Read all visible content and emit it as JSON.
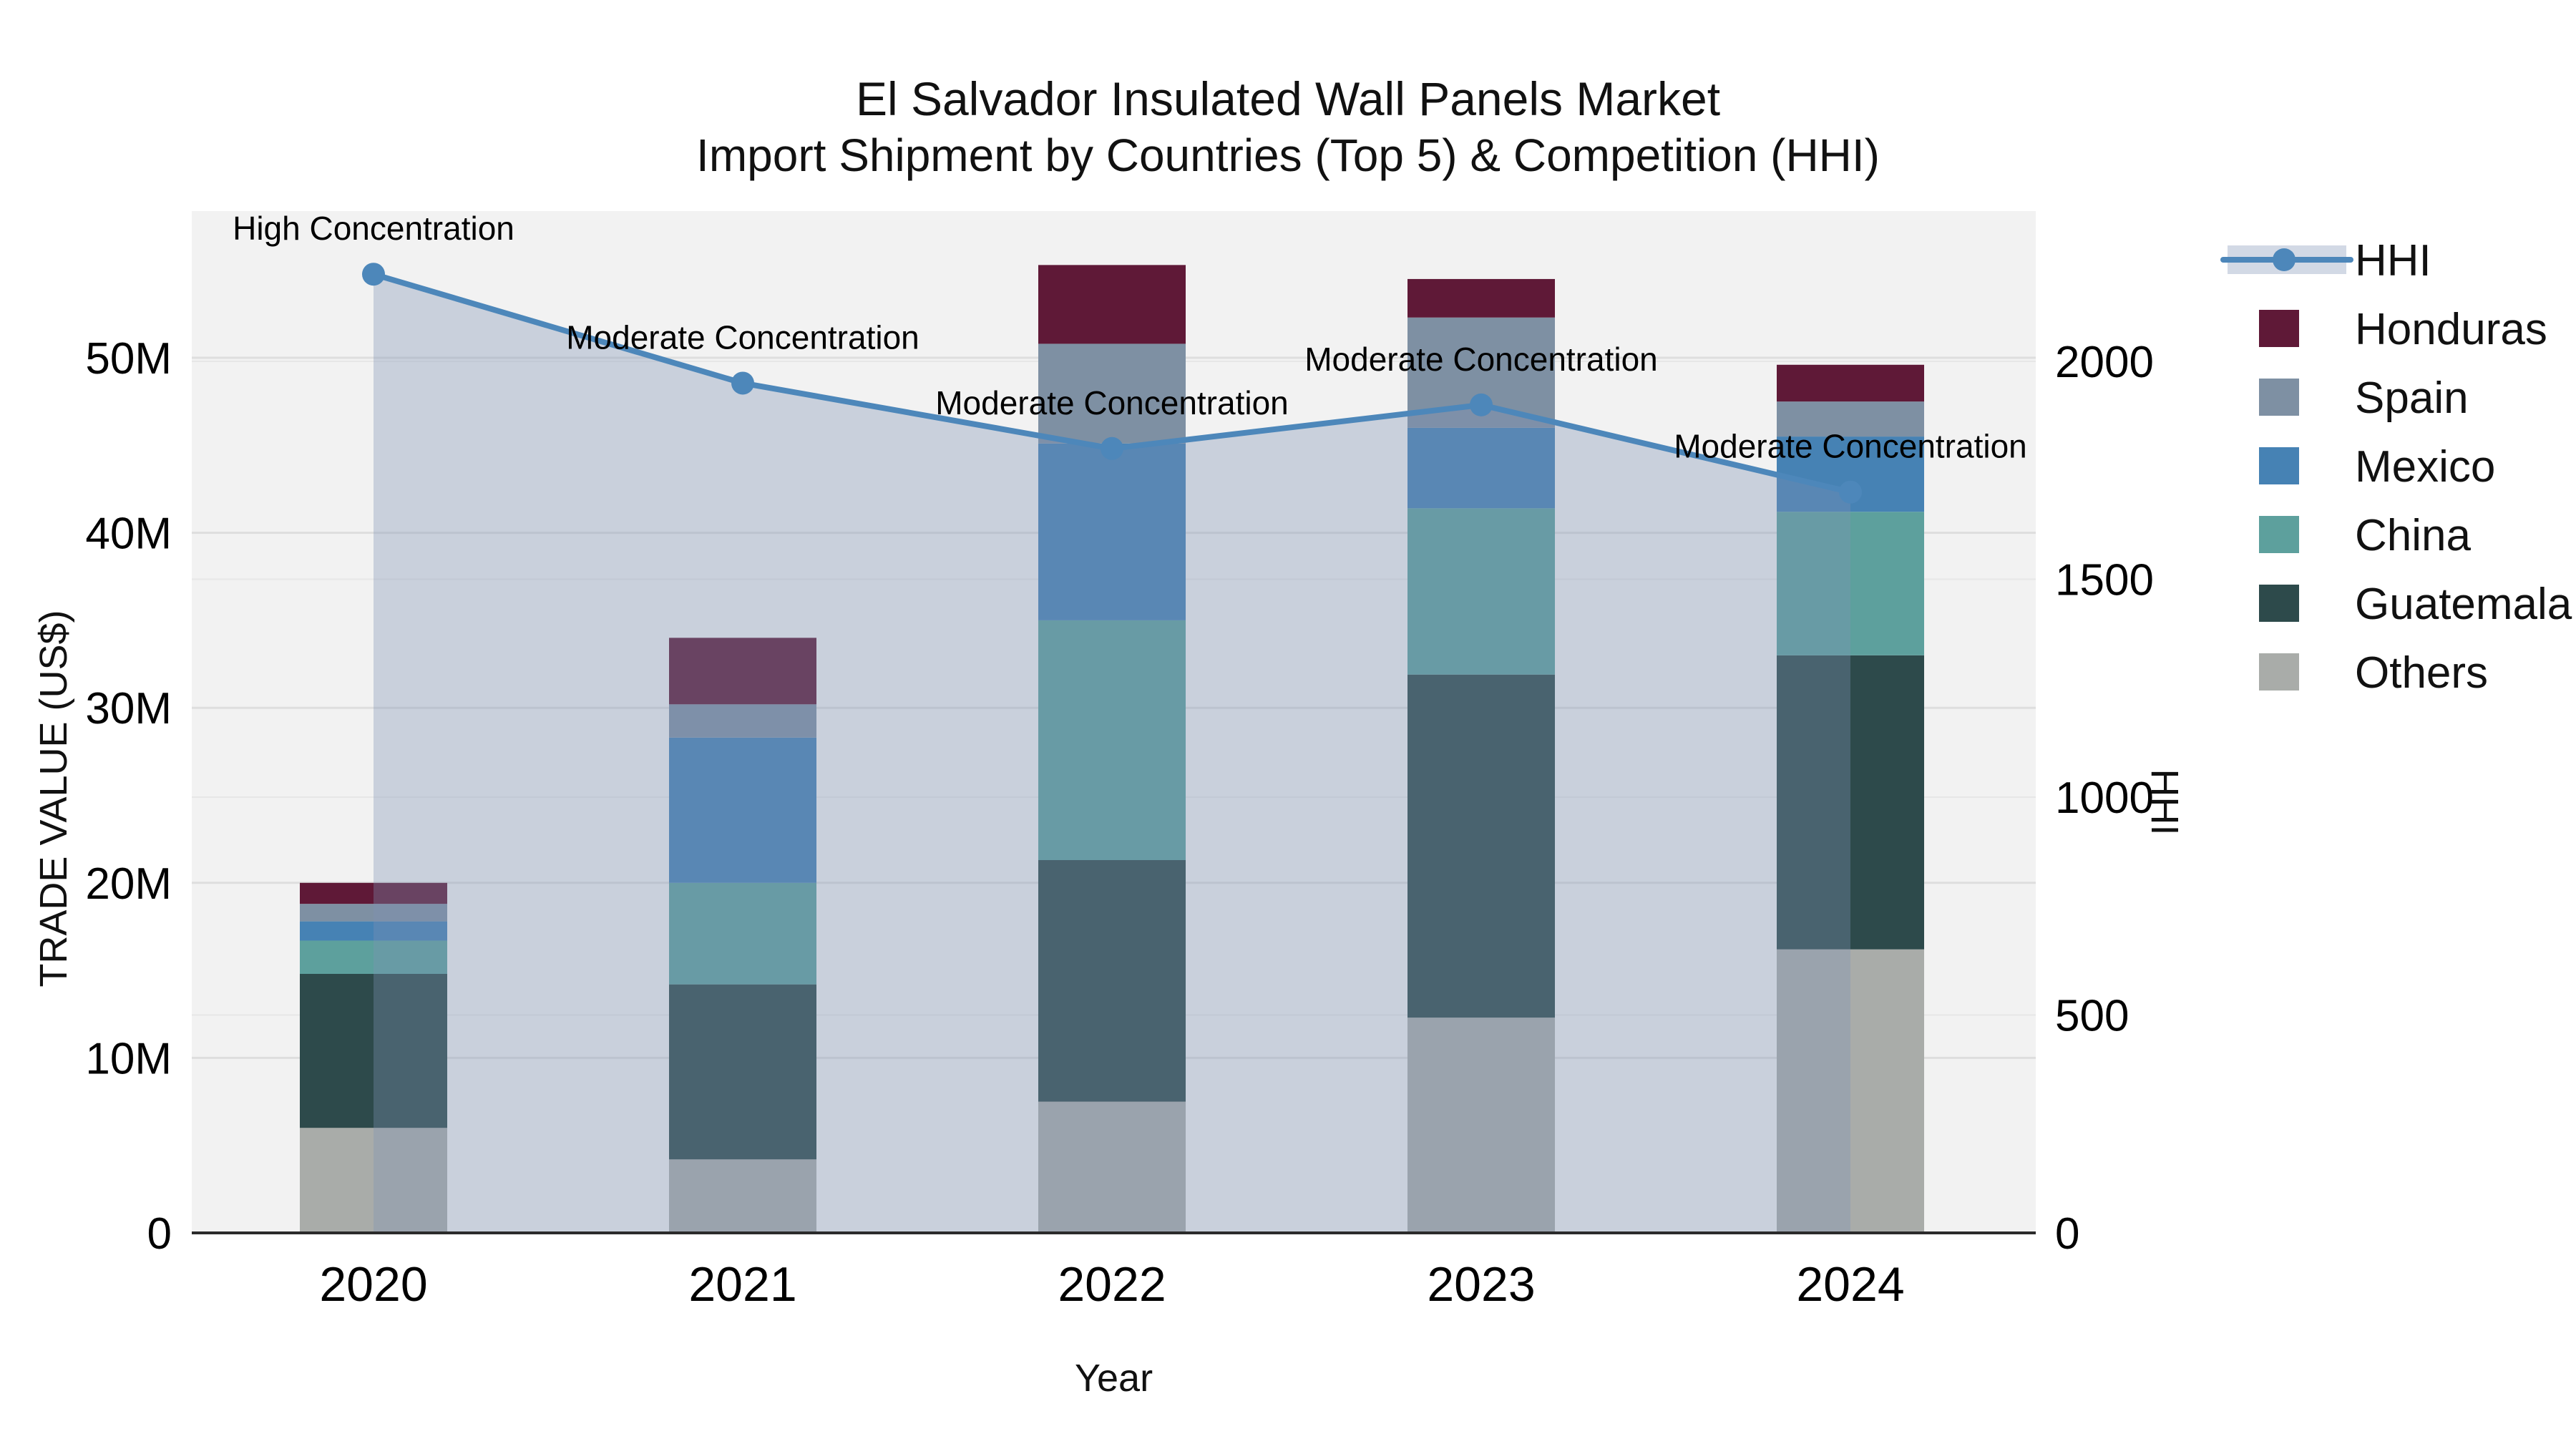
{
  "title": "El Salvador Insulated Wall Panels Market",
  "subtitle": "Import Shipment by Countries (Top 5) & Competition (HHI)",
  "xlabel": "Year",
  "chart_data": {
    "type": "bar+line",
    "categories": [
      "2020",
      "2021",
      "2022",
      "2023",
      "2024"
    ],
    "stack_note": "stacked import trade value by country, millions US$, bottom-to-top order: Others, Guatemala, China, Mexico, Spain, Honduras",
    "series": [
      {
        "name": "Honduras",
        "color": "#5f1937",
        "values": [
          1.2,
          3.8,
          4.5,
          2.2,
          2.1
        ]
      },
      {
        "name": "Spain",
        "color": "#7e90a3",
        "values": [
          1.0,
          1.9,
          5.7,
          6.3,
          2.0
        ]
      },
      {
        "name": "Mexico",
        "color": "#4682b4",
        "values": [
          1.1,
          8.3,
          10.1,
          4.6,
          4.3
        ]
      },
      {
        "name": "China",
        "color": "#5da09d",
        "values": [
          1.9,
          5.8,
          13.7,
          9.5,
          8.2
        ]
      },
      {
        "name": "Guatemala",
        "color": "#2d4a4b",
        "values": [
          8.8,
          10.0,
          13.8,
          19.6,
          16.8
        ]
      },
      {
        "name": "Others",
        "color": "#a9aca9",
        "values": [
          6.0,
          4.2,
          7.5,
          12.3,
          16.2
        ]
      }
    ],
    "totals": [
      20.0,
      34.0,
      55.3,
      54.5,
      49.6
    ],
    "hhi": {
      "name": "HHI",
      "line_color": "#4d87ba",
      "area_fill": "rgba(125,145,180,0.35)",
      "values": [
        2200,
        1950,
        1800,
        1900,
        1700
      ]
    },
    "annotations": [
      "High Concentration",
      "Moderate Concentration",
      "Moderate Concentration",
      "Moderate Concentration",
      "Moderate Concentration"
    ],
    "left_axis": {
      "title": "TRADE VALUE (US$)",
      "ticks": [
        "0",
        "10M",
        "20M",
        "30M",
        "40M",
        "50M"
      ],
      "tick_values": [
        0,
        10,
        20,
        30,
        40,
        50
      ],
      "max": 58.4
    },
    "right_axis": {
      "title": "HHI",
      "ticks": [
        "0",
        "500",
        "1000",
        "1500",
        "2000"
      ],
      "tick_values": [
        0,
        500,
        1000,
        1500,
        2000
      ],
      "max": 2345
    },
    "legend_order": [
      "HHI",
      "Honduras",
      "Spain",
      "Mexico",
      "China",
      "Guatemala",
      "Others"
    ],
    "grid": true,
    "legend_position": "right",
    "plot_bg": "#f2f2f2"
  }
}
